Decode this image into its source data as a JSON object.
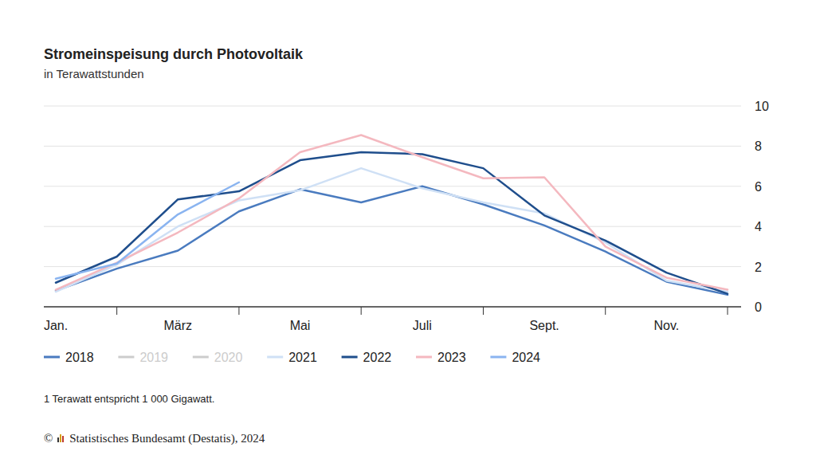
{
  "chart_data": {
    "type": "line",
    "title": "Stromeinspeisung durch Photovoltaik",
    "subtitle": "in Terawattstunden",
    "note": "1 Terawatt entspricht 1 000 Gigawatt.",
    "source": "© Statistisches Bundesamt (Destatis), 2024",
    "categories": [
      "Jan.",
      null,
      "März",
      null,
      "Mai",
      null,
      "Juli",
      null,
      "Sept.",
      null,
      "Nov.",
      null
    ],
    "series": [
      {
        "name": "2018",
        "color": "#4a7bbf",
        "values": [
          0.8,
          1.9,
          2.8,
          4.75,
          5.85,
          5.2,
          6.0,
          5.1,
          4.05,
          2.75,
          1.25,
          0.6
        ]
      },
      {
        "name": "2019",
        "color": "#cccccc",
        "values": [
          null,
          null,
          null,
          null,
          null,
          null,
          null,
          null,
          null,
          null,
          null,
          null
        ]
      },
      {
        "name": "2020",
        "color": "#cccccc",
        "values": [
          null,
          null,
          null,
          null,
          null,
          null,
          null,
          null,
          null,
          null,
          null,
          null
        ]
      },
      {
        "name": "2021",
        "color": "#cfe0f5",
        "values": [
          0.75,
          2.1,
          4.0,
          5.3,
          5.8,
          6.9,
          5.9,
          5.2,
          4.65,
          3.2,
          1.3,
          0.75
        ]
      },
      {
        "name": "2022",
        "color": "#1f4e8c",
        "values": [
          1.2,
          2.5,
          5.35,
          5.75,
          7.3,
          7.7,
          7.6,
          6.9,
          4.55,
          3.3,
          1.7,
          0.65
        ]
      },
      {
        "name": "2023",
        "color": "#f4b8bf",
        "values": [
          0.85,
          2.2,
          3.7,
          5.4,
          7.7,
          8.55,
          7.45,
          6.4,
          6.45,
          3.0,
          1.45,
          0.85
        ]
      },
      {
        "name": "2024",
        "color": "#8ab4f0",
        "values": [
          1.4,
          2.15,
          4.6,
          6.2,
          null,
          null,
          null,
          null,
          null,
          null,
          null,
          null
        ]
      }
    ],
    "ylim": [
      0,
      10
    ],
    "yticks": [
      0,
      2,
      4,
      6,
      8,
      10
    ],
    "grid": true,
    "legend": "bottom"
  }
}
